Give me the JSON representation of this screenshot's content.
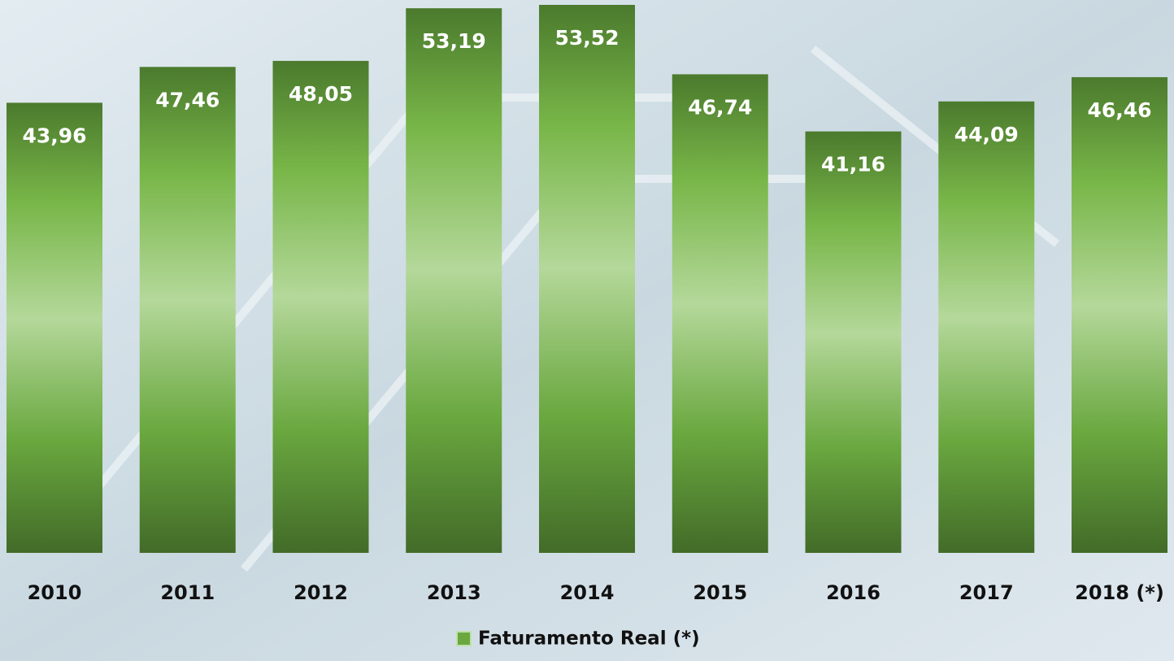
{
  "chart_data": {
    "type": "bar",
    "categories": [
      "2010",
      "2011",
      "2012",
      "2013",
      "2014",
      "2015",
      "2016",
      "2017",
      "2018 (*)"
    ],
    "series": [
      {
        "name": "Faturamento Real (*)",
        "color": "#6aa83f",
        "values": [
          43.96,
          47.46,
          48.05,
          53.19,
          53.52,
          46.74,
          41.16,
          44.09,
          46.46
        ],
        "value_labels": [
          "43,96",
          "47,46",
          "48,05",
          "53,19",
          "53,52",
          "46,74",
          "41,16",
          "44,09",
          "46,46"
        ]
      }
    ]
  }
}
